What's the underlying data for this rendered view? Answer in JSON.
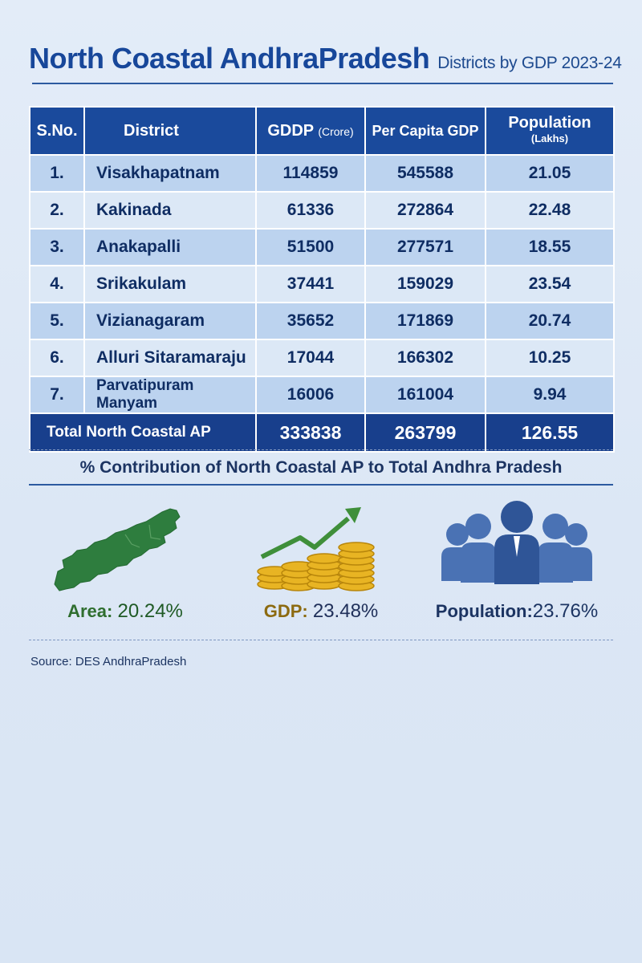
{
  "title": {
    "main": "North Coastal AndhraPradesh",
    "sub": "Districts by GDP 2023-24"
  },
  "table": {
    "headers": {
      "sno": "S.No.",
      "district": "District",
      "gddp": "GDDP",
      "gddp_unit": "(Crore)",
      "per_capita": "Per Capita GDP",
      "population": "Population",
      "population_unit": "(Lakhs)"
    },
    "rows": [
      {
        "sno": "1.",
        "district": "Visakhapatnam",
        "gddp": "114859",
        "per_capita": "545588",
        "population": "21.05"
      },
      {
        "sno": "2.",
        "district": "Kakinada",
        "gddp": "61336",
        "per_capita": "272864",
        "population": "22.48"
      },
      {
        "sno": "3.",
        "district": "Anakapalli",
        "gddp": "51500",
        "per_capita": "277571",
        "population": "18.55"
      },
      {
        "sno": "4.",
        "district": "Srikakulam",
        "gddp": "37441",
        "per_capita": "159029",
        "population": "23.54"
      },
      {
        "sno": "5.",
        "district": "Vizianagaram",
        "gddp": "35652",
        "per_capita": "171869",
        "population": "20.74"
      },
      {
        "sno": "6.",
        "district": "Alluri Sitaramaraju",
        "gddp": "17044",
        "per_capita": "166302",
        "population": "10.25"
      },
      {
        "sno": "7.",
        "district": "Parvatipuram Manyam",
        "gddp": "16006",
        "per_capita": "161004",
        "population": "9.94"
      }
    ],
    "total": {
      "label": "Total North Coastal AP",
      "gddp": "333838",
      "per_capita": "263799",
      "population": "126.55"
    }
  },
  "contribution": {
    "title": "% Contribution of North Coastal AP to Total Andhra Pradesh",
    "area": {
      "label": "Area:",
      "value": "20.24%",
      "icon": "map-icon"
    },
    "gdp": {
      "label": "GDP:",
      "value": "23.48%",
      "icon": "coins-growth-icon"
    },
    "population": {
      "label": "Population:",
      "value": "23.76%",
      "icon": "people-icon"
    }
  },
  "source": "Source:  DES AndhraPradesh",
  "colors": {
    "title": "#17479a",
    "header_bg": "#1a4a9c",
    "row_dark": "#bcd3ef",
    "row_light": "#dce8f6",
    "total_bg": "#183f8c",
    "map_green": "#2e7d3e",
    "coin_gold": "#e8b423",
    "people_blue": "#3d63a8"
  }
}
